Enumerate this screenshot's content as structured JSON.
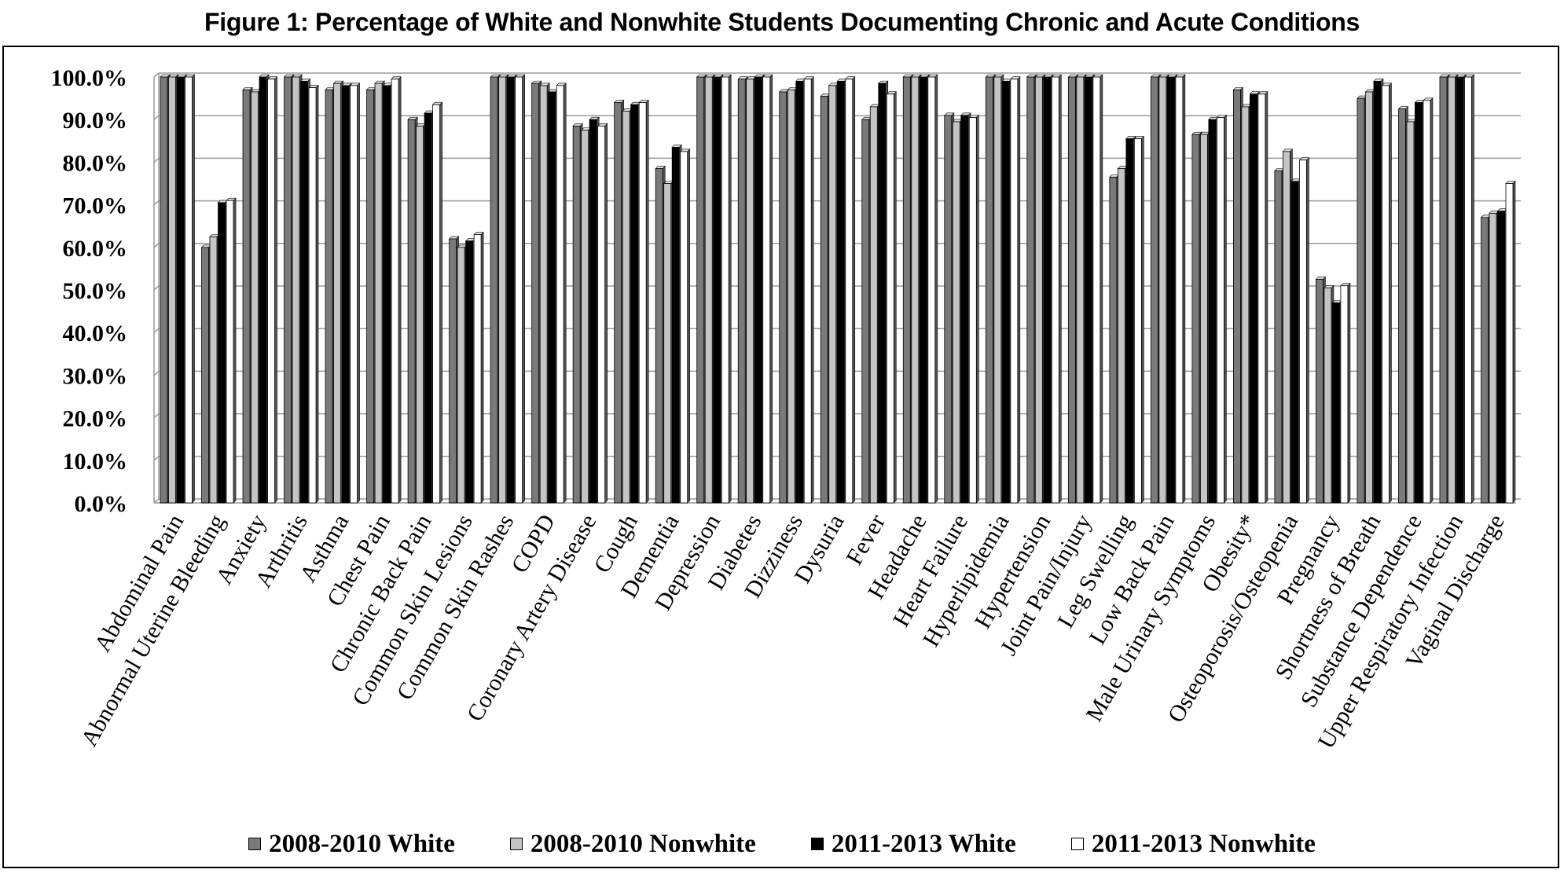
{
  "chart_data": {
    "type": "bar",
    "title": "Figure 1: Percentage of White and Nonwhite Students Documenting Chronic and Acute Conditions",
    "xlabel": "",
    "ylabel": "",
    "ylim": [
      0,
      100
    ],
    "yticks": [
      "0.0%",
      "10.0%",
      "20.0%",
      "30.0%",
      "40.0%",
      "50.0%",
      "60.0%",
      "70.0%",
      "80.0%",
      "90.0%",
      "100.0%"
    ],
    "grid": true,
    "legend_position": "bottom",
    "categories": [
      "Abdominal Pain",
      "Abnormal Uterine Bleeding",
      "Anxiety",
      "Arthritis",
      "Asthma",
      "Chest Pain",
      "Chronic Back Pain",
      "Common Skin Lesions",
      "Common Skin Rashes",
      "COPD",
      "Coronary Artery Disease",
      "Cough",
      "Dementia",
      "Depression",
      "Diabetes",
      "Dizziness",
      "Dysuria",
      "Fever",
      "Headache",
      "Heart Failure",
      "Hyperlipidemia",
      "Hypertension",
      "Joint Pain/Injury",
      "Leg Swelling",
      "Low Back Pain",
      "Male Urinary Symptoms",
      "Obesity*",
      "Osteoporosis/Osteopenia",
      "Pregnancy",
      "Shortness of Breath",
      "Substance Dependence",
      "Upper Respiratory Infection",
      "Vaginal Discharge"
    ],
    "series": [
      {
        "name": "2008-2010 White",
        "color": "#7a7a7a",
        "values": [
          100,
          60,
          97,
          100,
          97,
          97,
          90,
          62,
          100,
          98.5,
          88.5,
          94,
          78.5,
          100,
          99.5,
          96.5,
          95.5,
          90,
          100,
          91,
          100,
          100,
          100,
          76.5,
          100,
          86.5,
          97,
          78,
          52.5,
          95,
          92.5,
          100,
          67
        ]
      },
      {
        "name": "2008-2010 Nonwhite",
        "color": "#c4c4c4",
        "values": [
          100,
          62.5,
          96.5,
          100,
          98.5,
          98.5,
          88.5,
          60,
          100,
          98,
          87.5,
          92,
          75,
          100,
          99.5,
          97,
          98,
          93,
          100,
          89.5,
          100,
          100,
          100,
          78.5,
          100,
          86.5,
          93,
          82.5,
          50.5,
          96.5,
          89.5,
          100,
          68
        ]
      },
      {
        "name": "2011-2013 White",
        "color": "#000000",
        "values": [
          100,
          70.5,
          100,
          99,
          98,
          98,
          91.5,
          61.5,
          100,
          96.5,
          90,
          93.5,
          83.5,
          100,
          100,
          99,
          99,
          98.5,
          100,
          91,
          99,
          100,
          100,
          85.5,
          100,
          90,
          96,
          75.5,
          47,
          99,
          94,
          100,
          68.5
        ]
      },
      {
        "name": "2011-2013 Nonwhite",
        "color": "#ffffff",
        "values": [
          100,
          71,
          99.5,
          97.5,
          98,
          99.5,
          93.5,
          63,
          100,
          98,
          88.5,
          94,
          82.5,
          100,
          100,
          99.5,
          99.5,
          96,
          100,
          90.5,
          99.5,
          100,
          100,
          85.5,
          100,
          90.5,
          96,
          80.5,
          51,
          98,
          94.5,
          100,
          75
        ]
      }
    ]
  }
}
